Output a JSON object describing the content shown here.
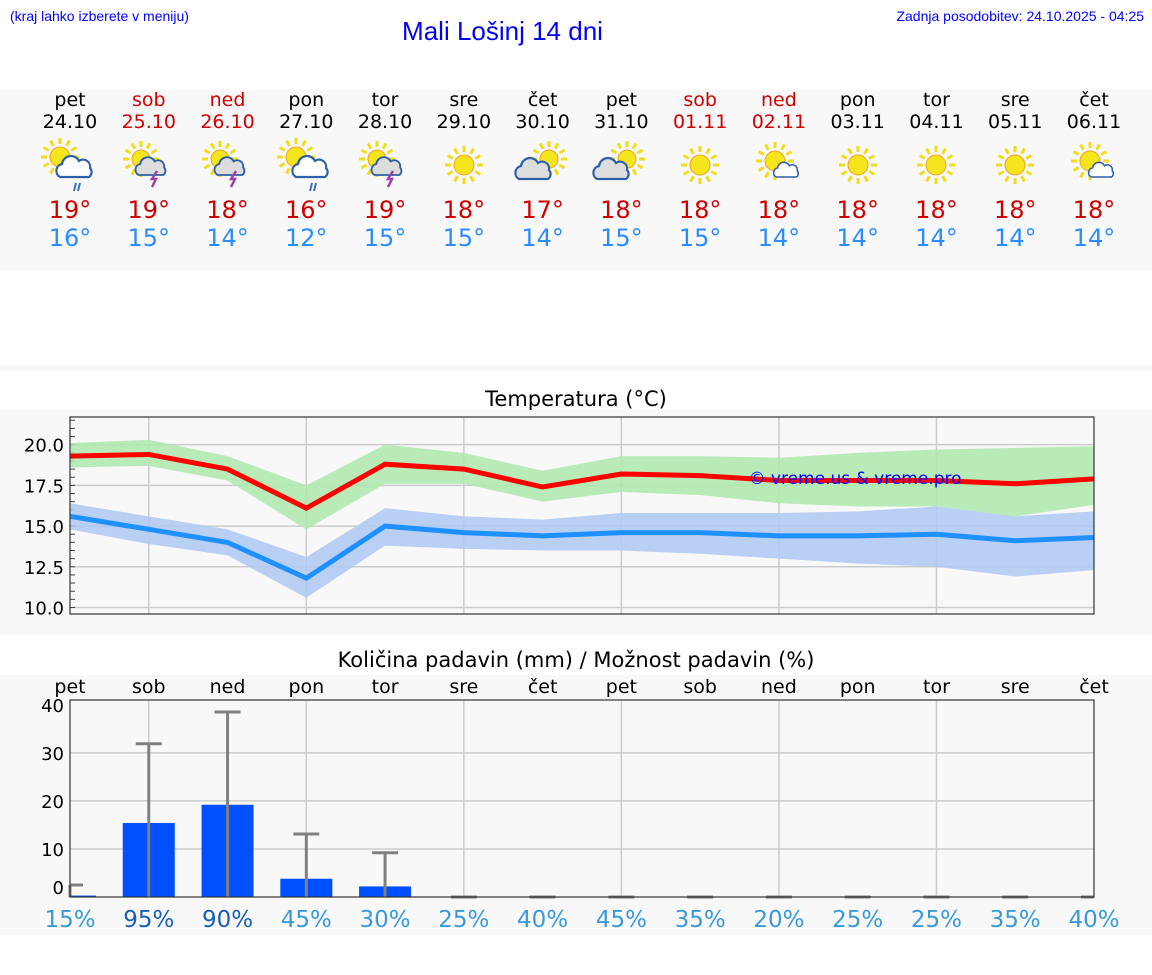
{
  "header": {
    "hint": "(kraj lahko izberete v meniju)",
    "title": "Mali Lošinj 14 dni",
    "updated": "Zadnja posodobitev: 24.10.2025 - 04:25"
  },
  "days": [
    {
      "name": "pet",
      "date": "24.10",
      "weekend": false,
      "icon": "sun-cloud-rain-icon",
      "max": "19°",
      "min": "16°"
    },
    {
      "name": "sob",
      "date": "25.10",
      "weekend": true,
      "icon": "sun-thunderstorm-icon",
      "max": "19°",
      "min": "15°"
    },
    {
      "name": "ned",
      "date": "26.10",
      "weekend": true,
      "icon": "sun-thunderstorm-icon",
      "max": "18°",
      "min": "14°"
    },
    {
      "name": "pon",
      "date": "27.10",
      "weekend": false,
      "icon": "sun-cloud-rain-icon",
      "max": "16°",
      "min": "12°"
    },
    {
      "name": "tor",
      "date": "28.10",
      "weekend": false,
      "icon": "sun-thunderstorm-icon",
      "max": "19°",
      "min": "15°"
    },
    {
      "name": "sre",
      "date": "29.10",
      "weekend": false,
      "icon": "sun-icon",
      "max": "18°",
      "min": "15°"
    },
    {
      "name": "čet",
      "date": "30.10",
      "weekend": false,
      "icon": "cloud-sun-icon",
      "max": "17°",
      "min": "14°"
    },
    {
      "name": "pet",
      "date": "31.10",
      "weekend": false,
      "icon": "cloud-sun-icon",
      "max": "18°",
      "min": "15°"
    },
    {
      "name": "sob",
      "date": "01.11",
      "weekend": true,
      "icon": "sun-icon",
      "max": "18°",
      "min": "15°"
    },
    {
      "name": "ned",
      "date": "02.11",
      "weekend": true,
      "icon": "sun-small-cloud-icon",
      "max": "18°",
      "min": "14°"
    },
    {
      "name": "pon",
      "date": "03.11",
      "weekend": false,
      "icon": "sun-icon",
      "max": "18°",
      "min": "14°"
    },
    {
      "name": "tor",
      "date": "04.11",
      "weekend": false,
      "icon": "sun-icon",
      "max": "18°",
      "min": "14°"
    },
    {
      "name": "sre",
      "date": "05.11",
      "weekend": false,
      "icon": "sun-icon",
      "max": "18°",
      "min": "14°"
    },
    {
      "name": "čet",
      "date": "06.11",
      "weekend": false,
      "icon": "sun-small-cloud-icon",
      "max": "18°",
      "min": "14°"
    }
  ],
  "colors": {
    "max": "#ff0000",
    "min": "#1e90ff",
    "max_band": "#aee9ae",
    "min_band": "#aec8f2",
    "bar": "#0050ff",
    "err": "#808080",
    "weekend": "#d00000"
  },
  "chart_data": [
    {
      "type": "line",
      "title": "Temperatura (°C)",
      "ylim": [
        9.6,
        21.7
      ],
      "yticks": [
        "10.0",
        "12.5",
        "15.0",
        "17.5",
        "20.0"
      ],
      "ytick_values": [
        10,
        12.5,
        15,
        17.5,
        20
      ],
      "watermark": "© vreme.us & vreme.pro",
      "series": [
        {
          "name": "max",
          "values": [
            19.3,
            19.4,
            18.5,
            16.1,
            18.8,
            18.5,
            17.4,
            18.2,
            18.1,
            17.8,
            17.8,
            17.8,
            17.6,
            17.9
          ],
          "band_upper": [
            20.1,
            20.3,
            19.3,
            17.5,
            20.0,
            19.5,
            18.4,
            19.3,
            19.3,
            19.2,
            19.5,
            19.7,
            19.8,
            19.9
          ],
          "band_lower": [
            18.6,
            18.7,
            17.8,
            14.8,
            17.6,
            17.6,
            16.5,
            17.1,
            16.9,
            16.4,
            16.2,
            16.2,
            15.6,
            16.3
          ]
        },
        {
          "name": "min",
          "values": [
            15.6,
            14.8,
            14.0,
            11.8,
            15.0,
            14.6,
            14.4,
            14.6,
            14.6,
            14.4,
            14.4,
            14.5,
            14.1,
            14.3
          ],
          "band_upper": [
            16.4,
            15.6,
            14.8,
            13.1,
            16.1,
            15.6,
            15.4,
            15.8,
            15.8,
            15.8,
            15.9,
            16.2,
            15.6,
            15.9
          ],
          "band_lower": [
            14.8,
            13.9,
            13.2,
            10.6,
            13.8,
            13.6,
            13.5,
            13.5,
            13.3,
            13.0,
            12.7,
            12.5,
            11.9,
            12.3
          ]
        }
      ]
    },
    {
      "type": "bar",
      "title": "Količina padavin (mm) / Možnost padavin (%)",
      "ylim": [
        0,
        41
      ],
      "yticks": [
        "0",
        "10",
        "20",
        "30",
        "40"
      ],
      "ytick_values": [
        0,
        10,
        20,
        30,
        40
      ],
      "categories": [
        "pet",
        "sob",
        "ned",
        "pon",
        "tor",
        "sre",
        "čet",
        "pet",
        "sob",
        "ned",
        "pon",
        "tor",
        "sre",
        "čet"
      ],
      "values": [
        0.3,
        15.4,
        19.2,
        3.8,
        2.2,
        0,
        0,
        0,
        0,
        0,
        0,
        0,
        0,
        0
      ],
      "error_upper": [
        2.5,
        31.9,
        38.5,
        13.1,
        9.2,
        0,
        0,
        0,
        0,
        0,
        0,
        0,
        0,
        0
      ],
      "probability": [
        "15%",
        "95%",
        "90%",
        "45%",
        "30%",
        "25%",
        "40%",
        "45%",
        "35%",
        "20%",
        "25%",
        "25%",
        "35%",
        "40%"
      ]
    }
  ]
}
